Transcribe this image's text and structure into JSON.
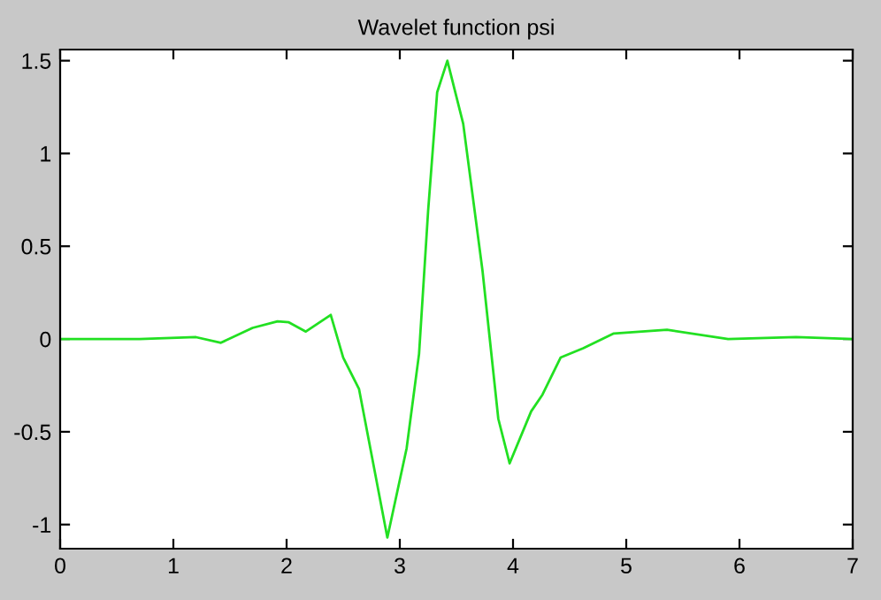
{
  "chart_data": {
    "type": "line",
    "title": "Wavelet function psi",
    "series": [
      {
        "color": "#22e022",
        "x": [
          0,
          0.7,
          1.2,
          1.42,
          1.7,
          1.92,
          2.02,
          2.17,
          2.39,
          2.5,
          2.64,
          2.89,
          3.06,
          3.17,
          3.25,
          3.33,
          3.42,
          3.56,
          3.73,
          3.87,
          3.97,
          4.16,
          4.26,
          4.42,
          4.62,
          4.89,
          5.36,
          5.9,
          6.5,
          7
        ],
        "values": [
          0,
          0,
          0.01,
          -0.02,
          0.06,
          0.095,
          0.09,
          0.04,
          0.13,
          -0.1,
          -0.27,
          -1.07,
          -0.59,
          -0.08,
          0.69,
          1.33,
          1.5,
          1.16,
          0.37,
          -0.43,
          -0.67,
          -0.39,
          -0.3,
          -0.1,
          -0.05,
          0.03,
          0.05,
          0,
          0.01,
          0
        ]
      }
    ],
    "xlim": [
      0,
      7
    ],
    "xticks": [
      0,
      1,
      2,
      3,
      4,
      5,
      6,
      7
    ],
    "ylim": [
      -1.13,
      1.56
    ],
    "yticks": [
      -1,
      -0.5,
      0,
      0.5,
      1,
      1.5
    ],
    "grid": false,
    "legend": false
  }
}
